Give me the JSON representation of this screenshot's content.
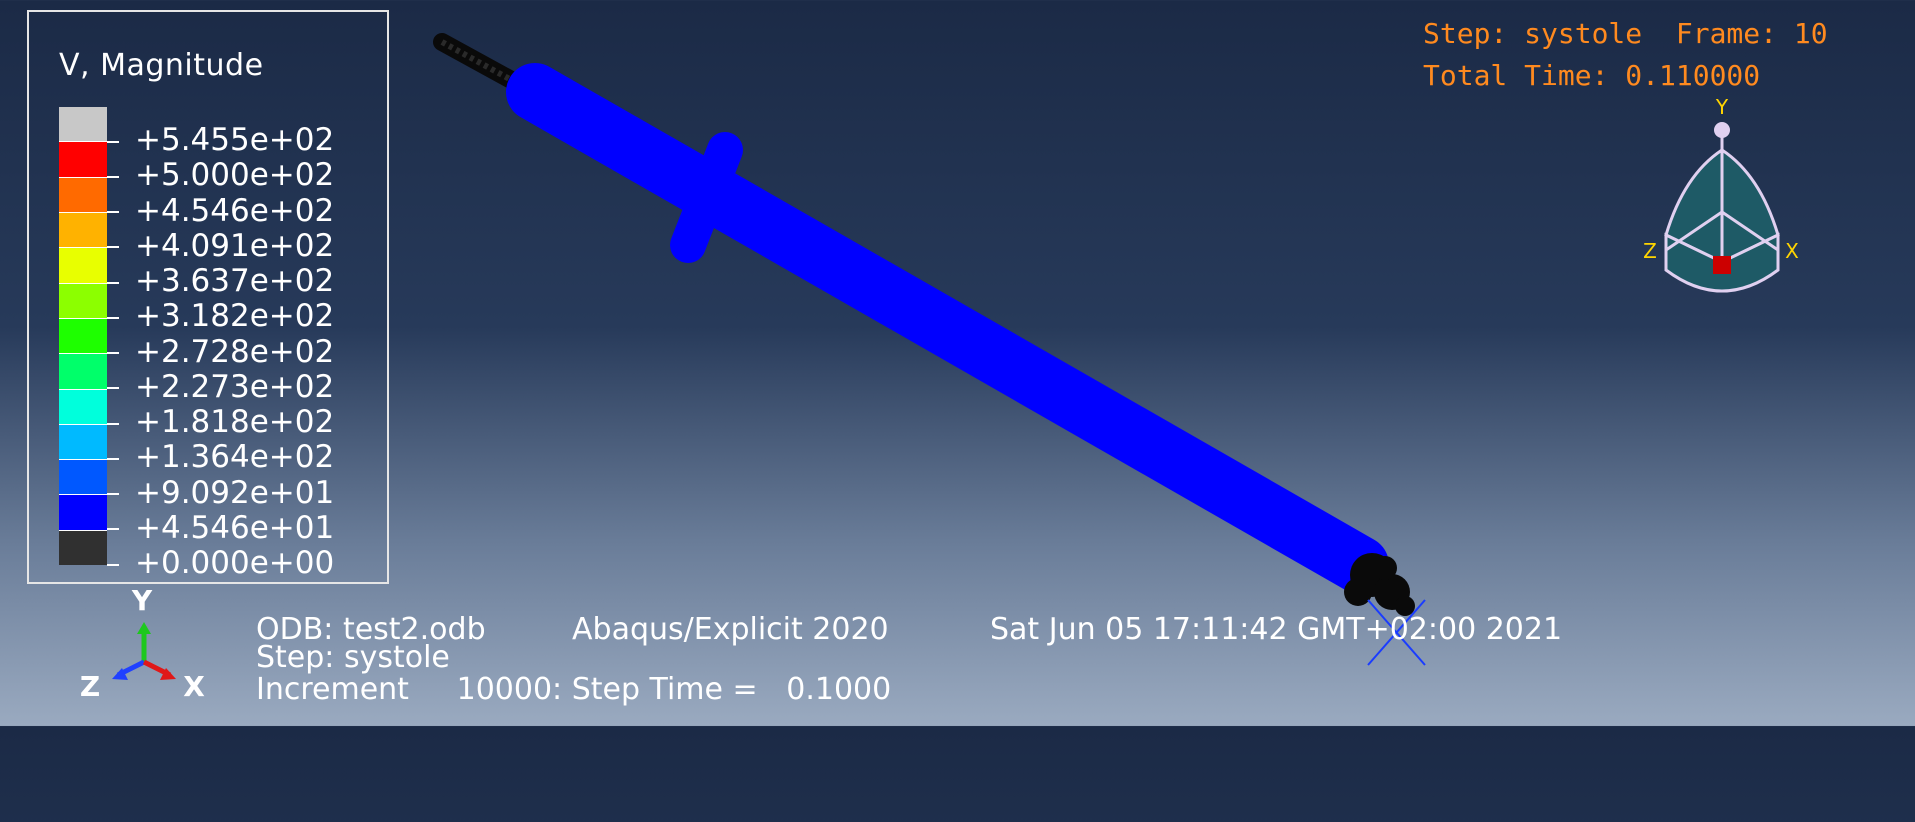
{
  "legend": {
    "title": "V, Magnitude",
    "colors": [
      "#c8c8c8",
      "#ff0000",
      "#ff6a00",
      "#ffb200",
      "#e8ff00",
      "#8cff00",
      "#1eff00",
      "#00ff6a",
      "#00ffdc",
      "#00baff",
      "#0058ff",
      "#0000ff",
      "#303030"
    ],
    "ticks": [
      "+5.455e+02",
      "+5.000e+02",
      "+4.546e+02",
      "+4.091e+02",
      "+3.637e+02",
      "+3.182e+02",
      "+2.728e+02",
      "+2.273e+02",
      "+1.818e+02",
      "+1.364e+02",
      "+9.092e+01",
      "+4.546e+01",
      "+0.000e+00"
    ]
  },
  "status": {
    "step_line": "Step: systole  Frame: 10",
    "time_line": "Total Time: 0.110000"
  },
  "triad_view": {
    "y": "Y",
    "z": "Z",
    "x": "X"
  },
  "triad_global": {
    "y": "Y",
    "z": "Z",
    "x": "X"
  },
  "info": {
    "odb": "ODB: test2.odb",
    "solver": "Abaqus/Explicit 2020",
    "date": "Sat Jun 05 17:11:42 GMT+02:00 2021",
    "step": "Step: systole",
    "increment": "Increment     10000: Step Time =   0.1000"
  },
  "colors": {
    "model": "#0000ff",
    "mesh_dark": "#0a0a0a",
    "status_text": "#ff8a1f",
    "triad_fill": "#1e5a66",
    "triad_edge": "#e0d0f0"
  }
}
